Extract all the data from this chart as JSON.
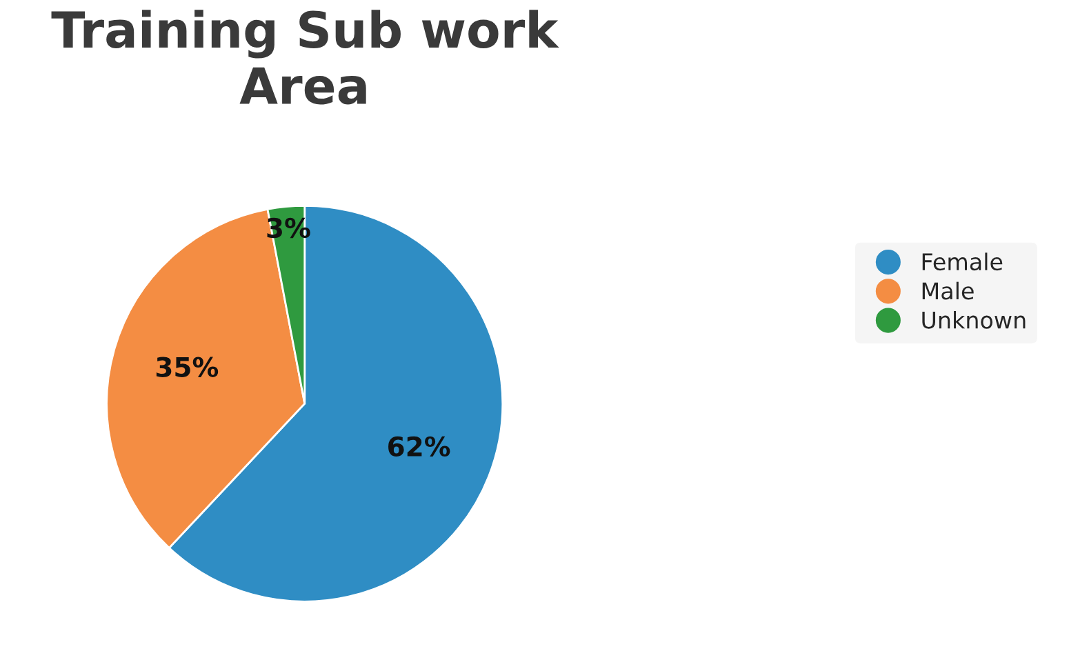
{
  "chart_data": {
    "type": "pie",
    "title": "Training Sub work Area",
    "categories": [
      "Female",
      "Male",
      "Unknown"
    ],
    "values": [
      62,
      35,
      3
    ],
    "colors": [
      "#2f8dc4",
      "#f48d43",
      "#2f9a3f"
    ],
    "value_labels": [
      "62%",
      "35%",
      "3%"
    ],
    "legend": "right"
  }
}
